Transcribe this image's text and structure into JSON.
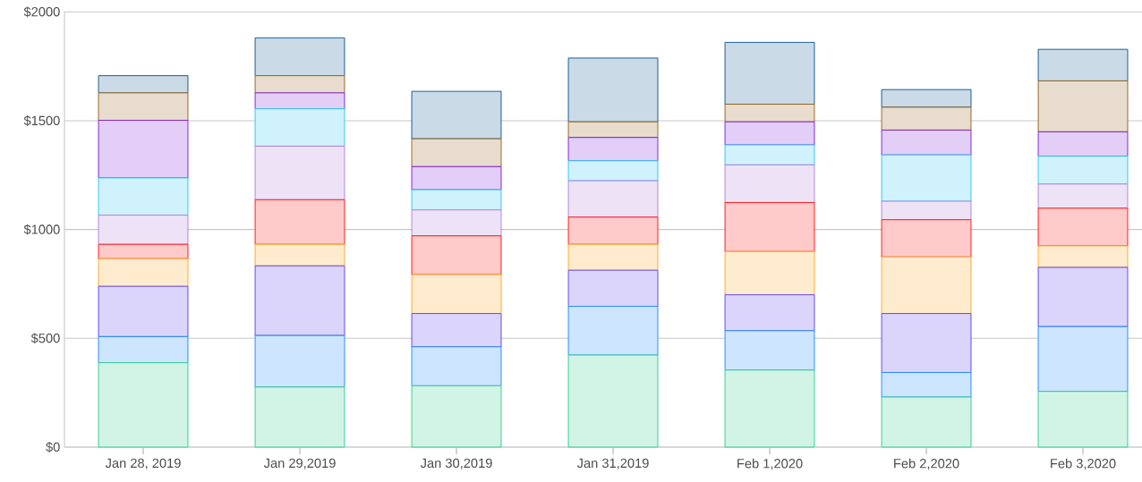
{
  "chart_data": {
    "type": "bar",
    "stacked": true,
    "grid": "y",
    "categories": [
      "Jan 28, 2019",
      "Jan 29,2019",
      "Jan 30,2019",
      "Jan 31,2019",
      "Feb 1,2020",
      "Feb 2,2020",
      "Feb 3,2020"
    ],
    "ylim": [
      0,
      2000
    ],
    "yticks": [
      {
        "value": 0,
        "label": "$0"
      },
      {
        "value": 500,
        "label": "$500"
      },
      {
        "value": 1000,
        "label": "$1000"
      },
      {
        "value": 1500,
        "label": "$1500"
      },
      {
        "value": 2000,
        "label": "$2000"
      }
    ],
    "series": [
      {
        "color": "#2ecc8f",
        "values": [
          388,
          276,
          282,
          423,
          354,
          230,
          256
        ]
      },
      {
        "color": "#1e88ff",
        "values": [
          120,
          237,
          179,
          224,
          181,
          113,
          298
        ]
      },
      {
        "color": "#5b3ff0",
        "values": [
          231,
          320,
          153,
          166,
          165,
          271,
          272
        ]
      },
      {
        "color": "#ffa726",
        "values": [
          127,
          99,
          179,
          119,
          199,
          260,
          99
        ]
      },
      {
        "color": "#ff1010",
        "values": [
          66,
          205,
          178,
          125,
          225,
          171,
          173
        ]
      },
      {
        "color": "#b07fd8",
        "values": [
          134,
          246,
          119,
          167,
          173,
          85,
          111
        ]
      },
      {
        "color": "#29c5f0",
        "values": [
          171,
          172,
          93,
          92,
          92,
          213,
          128
        ]
      },
      {
        "color": "#7a1fd6",
        "values": [
          265,
          73,
          106,
          107,
          106,
          114,
          112
        ]
      },
      {
        "color": "#94611a",
        "values": [
          126,
          79,
          128,
          72,
          81,
          105,
          234
        ]
      },
      {
        "color": "#0d5591",
        "values": [
          79,
          174,
          218,
          293,
          284,
          81,
          145
        ]
      }
    ]
  }
}
